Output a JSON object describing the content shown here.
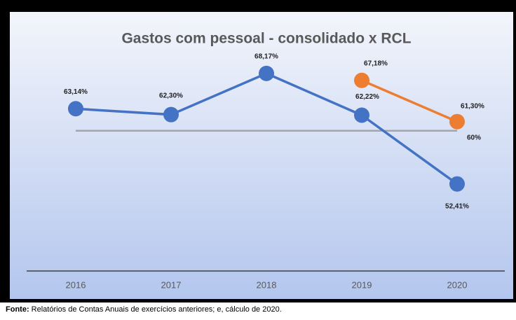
{
  "chart_data": {
    "type": "line",
    "title": "Gastos com pessoal - consolidado x RCL",
    "categories": [
      "2016",
      "2017",
      "2018",
      "2019",
      "2020"
    ],
    "series": [
      {
        "color": "#4472c4",
        "values": [
          63.14,
          62.3,
          68.17,
          62.22,
          52.41
        ],
        "value_labels": [
          "63,14%",
          "62,30%",
          "68,17%",
          "62,22%",
          "52,41%"
        ],
        "markers": true
      },
      {
        "color": "#ed7d31",
        "values": [
          null,
          null,
          null,
          67.18,
          61.3
        ],
        "value_labels": [
          null,
          null,
          null,
          "67,18%",
          "61,30%"
        ],
        "markers": true
      },
      {
        "color": "#a5a5a5",
        "values": [
          60,
          60,
          60,
          60,
          60
        ],
        "value_labels": [
          null,
          null,
          null,
          null,
          "60%"
        ],
        "markers": false
      }
    ],
    "ylim": [
      40,
      75
    ],
    "yticks": [],
    "grid": false
  },
  "footer": {
    "label": "Fonte:",
    "text": " Relatórios de Contas Anuais de exercícios anteriores; e, cálculo de 2020."
  }
}
